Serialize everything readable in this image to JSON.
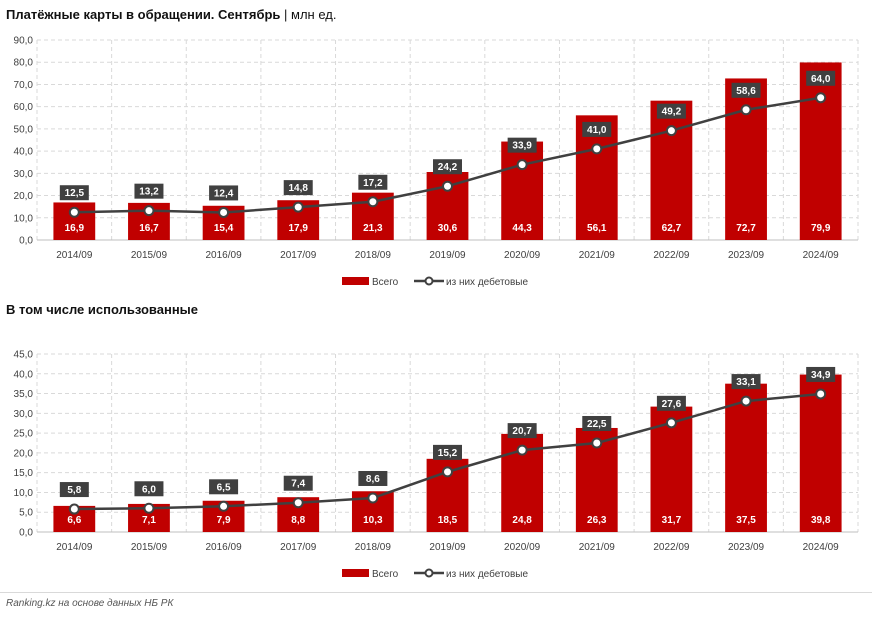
{
  "source": "Ranking.kz на основе данных НБ РК",
  "colors": {
    "bar": "#c00000",
    "line": "#404040",
    "label_bg": "#404040",
    "grid": "#d9d9d9"
  },
  "chart_data": [
    {
      "type": "bar",
      "title_bold": "Платёжные карты в обращении. Сентябрь",
      "title_rest": " | млн ед.",
      "categories": [
        "2014/09",
        "2015/09",
        "2016/09",
        "2017/09",
        "2018/09",
        "2019/09",
        "2020/09",
        "2021/09",
        "2022/09",
        "2023/09",
        "2024/09"
      ],
      "series": [
        {
          "name": "Всего",
          "type": "bar",
          "values": [
            16.9,
            16.7,
            15.4,
            17.9,
            21.3,
            30.6,
            44.3,
            56.1,
            62.7,
            72.7,
            79.9
          ]
        },
        {
          "name": "из них дебетовые",
          "type": "line",
          "values": [
            12.5,
            13.2,
            12.4,
            14.8,
            17.2,
            24.2,
            33.9,
            41.0,
            49.2,
            58.6,
            64.0
          ]
        }
      ],
      "ylim": [
        0,
        90
      ],
      "ystep": 10,
      "grid": true,
      "legend": "bottom"
    },
    {
      "type": "bar",
      "title_bold": "В том числе использованные",
      "title_rest": "",
      "categories": [
        "2014/09",
        "2015/09",
        "2016/09",
        "2017/09",
        "2018/09",
        "2019/09",
        "2020/09",
        "2021/09",
        "2022/09",
        "2023/09",
        "2024/09"
      ],
      "series": [
        {
          "name": "Всего",
          "type": "bar",
          "values": [
            6.6,
            7.1,
            7.9,
            8.8,
            10.3,
            18.5,
            24.8,
            26.3,
            31.7,
            37.5,
            39.8
          ]
        },
        {
          "name": "из них дебетовые",
          "type": "line",
          "values": [
            5.8,
            6.0,
            6.5,
            7.4,
            8.6,
            15.2,
            20.7,
            22.5,
            27.6,
            33.1,
            34.9
          ]
        }
      ],
      "ylim": [
        0,
        45
      ],
      "ystep": 5,
      "grid": true,
      "legend": "bottom"
    }
  ]
}
